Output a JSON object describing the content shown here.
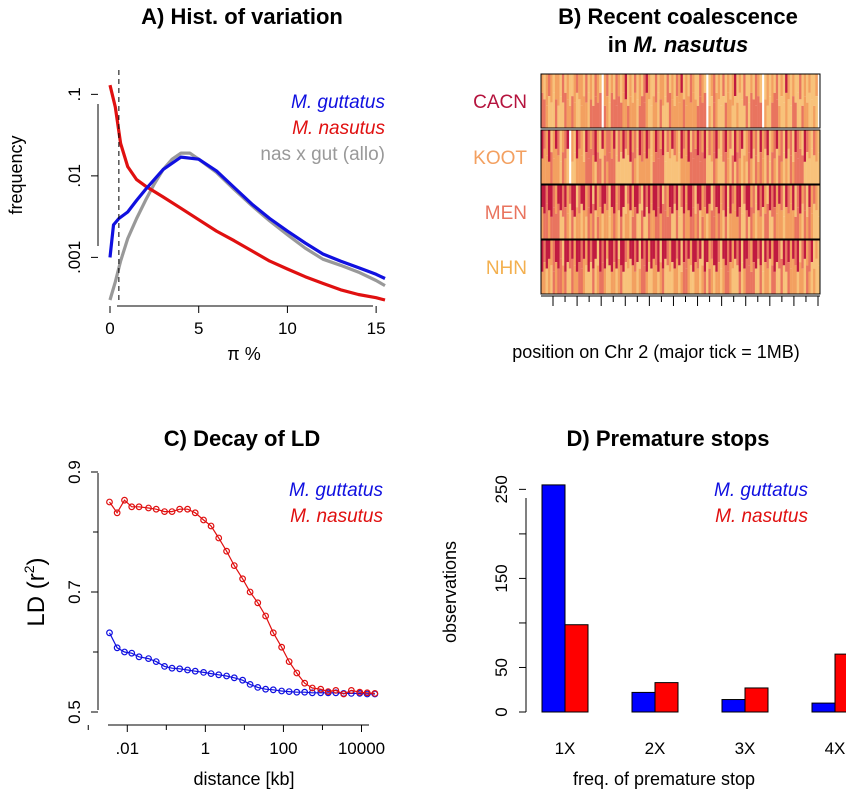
{
  "chart_data": [
    {
      "panel": "A",
      "type": "line",
      "title": "A) Hist. of variation",
      "xlabel": "π %",
      "ylabel": "frequency",
      "x_ticks": [
        "0",
        "5",
        "10",
        "15"
      ],
      "y_ticks": [
        ".001",
        ".01",
        ".1"
      ],
      "xlim": [
        0,
        15.5
      ],
      "ylim": [
        0.0003,
        0.15
      ],
      "y_scale": "log",
      "vline_x": 0.5,
      "legend_position": "top-right",
      "series": [
        {
          "name": "M. guttatus",
          "italic": true,
          "color": "#1010e0",
          "x": [
            0,
            0.2,
            0.5,
            1,
            1.5,
            2,
            3,
            4,
            5,
            6,
            7,
            8,
            9,
            10,
            11,
            12,
            13,
            14,
            15,
            15.5
          ],
          "y": [
            0.001,
            0.0025,
            0.003,
            0.0036,
            0.005,
            0.0068,
            0.012,
            0.017,
            0.016,
            0.0115,
            0.0072,
            0.0045,
            0.003,
            0.0021,
            0.0015,
            0.0011,
            0.0009,
            0.00075,
            0.00062,
            0.00055
          ]
        },
        {
          "name": "M. nasutus",
          "italic": true,
          "color": "#e01010",
          "x": [
            0,
            0.3,
            0.6,
            1,
            1.5,
            2,
            3,
            4,
            5,
            6,
            7,
            8,
            9,
            10,
            11,
            12,
            13,
            14,
            15,
            15.5
          ],
          "y": [
            0.13,
            0.07,
            0.025,
            0.013,
            0.009,
            0.0075,
            0.0055,
            0.004,
            0.0029,
            0.0021,
            0.0016,
            0.0012,
            0.0009,
            0.00072,
            0.00058,
            0.00048,
            0.0004,
            0.00035,
            0.00032,
            0.0003
          ]
        },
        {
          "name": "nas x gut (allo)",
          "italic": false,
          "color": "#999999",
          "x": [
            0,
            0.3,
            0.6,
            1,
            1.5,
            2,
            2.5,
            3,
            3.5,
            4,
            4.5,
            5,
            6,
            7,
            8,
            9,
            10,
            11,
            12,
            13,
            14,
            15,
            15.5
          ],
          "y": [
            0.0003,
            0.0005,
            0.0009,
            0.0017,
            0.003,
            0.005,
            0.008,
            0.012,
            0.016,
            0.019,
            0.019,
            0.016,
            0.011,
            0.0068,
            0.0043,
            0.0028,
            0.0019,
            0.0013,
            0.00095,
            0.0008,
            0.00066,
            0.00052,
            0.00045
          ]
        }
      ]
    },
    {
      "panel": "B",
      "type": "heatmap",
      "title_line1": "B) Recent coalescence",
      "title_line2_prefix": "in ",
      "title_line2_italic": "M. nasutus",
      "xlabel": "position on Chr 2 (major tick = 1MB)",
      "colors": [
        "#ffffff",
        "#f8c27a",
        "#f3a060",
        "#e9745f",
        "#c01a40"
      ],
      "n_minor_ticks": 23,
      "rows": [
        {
          "label": "CACN",
          "color": "#b5143e",
          "levels": [
            2,
            1,
            2,
            3,
            2,
            1,
            2,
            2,
            1,
            3,
            1,
            2,
            1,
            1,
            2,
            3,
            2,
            2,
            1,
            3,
            1,
            2,
            1,
            3,
            2,
            1,
            0,
            2,
            3,
            1,
            2,
            1,
            3,
            2,
            1,
            2,
            4,
            1,
            2,
            1,
            3,
            1,
            2,
            1,
            3,
            4,
            2,
            1,
            1,
            3,
            1,
            2,
            2,
            1,
            3,
            1,
            2,
            1,
            3,
            2,
            4,
            1,
            2,
            1,
            3,
            2,
            1,
            1,
            3,
            2,
            1,
            0,
            1,
            2,
            3,
            1,
            2,
            1,
            3,
            1,
            2,
            1,
            2,
            4,
            1,
            2,
            1,
            3,
            1,
            1,
            2,
            1,
            3,
            2,
            1,
            0,
            1,
            2,
            1,
            2,
            1,
            3,
            1,
            2,
            1,
            4,
            2,
            1,
            2,
            1,
            1,
            3,
            1,
            2,
            1,
            2,
            1,
            1,
            2,
            0
          ]
        },
        {
          "label": "KOOT",
          "color": "#f3a060",
          "levels": [
            4,
            3,
            2,
            4,
            1,
            2,
            4,
            3,
            1,
            2,
            3,
            4,
            0,
            2,
            1,
            4,
            3,
            2,
            1,
            4,
            3,
            2,
            3,
            4,
            2,
            1,
            4,
            2,
            3,
            3,
            2,
            4,
            1,
            3,
            2,
            4,
            3,
            2,
            4,
            2,
            3,
            1,
            4,
            3,
            2,
            4,
            3,
            1,
            2,
            4,
            3,
            2,
            4,
            1,
            3,
            2,
            4,
            3,
            2,
            1,
            4,
            3,
            2,
            4,
            1,
            3,
            2,
            4,
            3,
            2,
            4,
            1,
            3,
            2,
            3,
            4,
            2,
            1,
            3,
            4,
            2,
            3,
            1,
            4,
            2,
            3,
            4,
            1,
            2,
            3,
            4,
            2,
            3,
            1,
            4,
            2,
            3,
            4,
            1,
            2,
            3,
            4,
            2,
            3,
            1,
            4,
            2,
            3,
            1,
            4,
            3,
            2,
            1,
            4,
            3,
            2,
            1,
            3,
            2,
            1
          ]
        },
        {
          "label": "MEN",
          "color": "#e9745f",
          "levels": [
            4,
            4,
            3,
            4,
            4,
            3,
            2,
            4,
            4,
            3,
            4,
            2,
            3,
            4,
            4,
            1,
            3,
            4,
            4,
            2,
            3,
            4,
            1,
            4,
            2,
            3,
            4,
            4,
            3,
            1,
            4,
            4,
            2,
            3,
            4,
            4,
            1,
            3,
            4,
            2,
            4,
            4,
            3,
            1,
            4,
            3,
            4,
            2,
            4,
            4,
            3,
            4,
            1,
            3,
            2,
            4,
            4,
            3,
            4,
            1,
            3,
            4,
            2,
            4,
            4,
            3,
            1,
            4,
            4,
            2,
            3,
            4,
            4,
            1,
            3,
            4,
            4,
            2,
            3,
            4,
            1,
            4,
            3,
            2,
            4,
            4,
            1,
            3,
            4,
            4,
            2,
            3,
            1,
            4,
            3,
            4,
            2,
            1,
            4,
            3,
            4,
            2,
            4,
            3,
            1,
            4,
            3,
            2,
            4,
            1,
            3,
            4,
            2,
            3,
            1,
            4,
            2,
            3,
            2,
            1
          ]
        },
        {
          "label": "NHN",
          "color": "#f3b04f",
          "levels": [
            4,
            3,
            4,
            4,
            2,
            3,
            4,
            4,
            3,
            1,
            4,
            4,
            3,
            4,
            2,
            4,
            4,
            3,
            4,
            2,
            4,
            3,
            4,
            4,
            1,
            4,
            3,
            4,
            2,
            4,
            4,
            3,
            4,
            1,
            4,
            4,
            3,
            2,
            4,
            4,
            3,
            4,
            1,
            4,
            3,
            4,
            2,
            4,
            4,
            3,
            4,
            1,
            4,
            4,
            3,
            2,
            4,
            4,
            3,
            4,
            1,
            4,
            3,
            4,
            2,
            4,
            4,
            3,
            4,
            1,
            4,
            4,
            2,
            3,
            4,
            4,
            3,
            1,
            4,
            4,
            3,
            4,
            2,
            4,
            3,
            4,
            1,
            4,
            4,
            3,
            2,
            4,
            4,
            3,
            4,
            1,
            4,
            3,
            4,
            2,
            4,
            4,
            3,
            1,
            4,
            3,
            4,
            2,
            4,
            3,
            4,
            1,
            3,
            4,
            2,
            3,
            4,
            1,
            2,
            1
          ]
        }
      ]
    },
    {
      "panel": "C",
      "type": "line",
      "title": "C) Decay of LD",
      "xlabel": "distance [kb]",
      "ylabel": "LD (r",
      "ylabel_sup": "2",
      "ylabel_end": ")",
      "x_scale": "log",
      "x_ticks": [
        ".01",
        "1",
        "100",
        "10000"
      ],
      "x_tick_values": [
        0.01,
        1,
        100,
        10000
      ],
      "xlim": [
        0.002,
        40000
      ],
      "y_ticks": [
        "0.5",
        "0.7",
        "0.9"
      ],
      "y_tick_values": [
        0.5,
        0.7,
        0.9
      ],
      "ylim": [
        0.5,
        0.9
      ],
      "legend_position": "top-right",
      "series": [
        {
          "name": "M. guttatus",
          "color": "#1010e0",
          "x": [
            0.0035,
            0.0055,
            0.0085,
            0.013,
            0.02,
            0.035,
            0.055,
            0.09,
            0.14,
            0.22,
            0.35,
            0.55,
            0.9,
            1.4,
            2.2,
            3.5,
            5.5,
            9,
            14,
            22,
            35,
            55,
            90,
            140,
            220,
            350,
            550,
            900,
            1400,
            2200,
            3500,
            5500,
            9000,
            14000,
            22000
          ],
          "y": [
            0.632,
            0.607,
            0.6,
            0.598,
            0.592,
            0.589,
            0.584,
            0.576,
            0.573,
            0.572,
            0.57,
            0.568,
            0.566,
            0.564,
            0.562,
            0.56,
            0.557,
            0.553,
            0.546,
            0.541,
            0.538,
            0.537,
            0.535,
            0.534,
            0.533,
            0.533,
            0.532,
            0.532,
            0.532,
            0.532,
            0.531,
            0.531,
            0.531,
            0.53,
            0.53
          ]
        },
        {
          "name": "M. nasutus",
          "color": "#e01010",
          "x": [
            0.0035,
            0.0055,
            0.0085,
            0.013,
            0.02,
            0.035,
            0.055,
            0.09,
            0.14,
            0.22,
            0.35,
            0.55,
            0.9,
            1.4,
            2.2,
            3.5,
            5.5,
            9,
            14,
            22,
            35,
            55,
            90,
            140,
            220,
            350,
            550,
            900,
            1400,
            2200,
            3500,
            5500,
            9000,
            14000,
            22000
          ],
          "y": [
            0.85,
            0.832,
            0.853,
            0.842,
            0.842,
            0.84,
            0.838,
            0.834,
            0.834,
            0.838,
            0.838,
            0.832,
            0.82,
            0.81,
            0.79,
            0.768,
            0.744,
            0.722,
            0.7,
            0.682,
            0.66,
            0.632,
            0.608,
            0.584,
            0.565,
            0.548,
            0.54,
            0.538,
            0.534,
            0.536,
            0.53,
            0.536,
            0.533,
            0.532,
            0.531
          ]
        }
      ]
    },
    {
      "panel": "D",
      "type": "bar",
      "title": "D) Premature stops",
      "xlabel": "freq. of premature stop",
      "ylabel": "observations",
      "categories": [
        "1X",
        "2X",
        "3X",
        "4X"
      ],
      "y_ticks": [
        "0",
        "50",
        "150",
        "250"
      ],
      "y_tick_values": [
        0,
        50,
        150,
        250
      ],
      "ylim": [
        0,
        265
      ],
      "legend_position": "top-right",
      "series": [
        {
          "name": "M. guttatus",
          "color": "#0000ff",
          "values": [
            255,
            22,
            14,
            10
          ]
        },
        {
          "name": "M. nasutus",
          "color": "#ff0000",
          "values": [
            98,
            33,
            27,
            65
          ]
        }
      ]
    }
  ]
}
